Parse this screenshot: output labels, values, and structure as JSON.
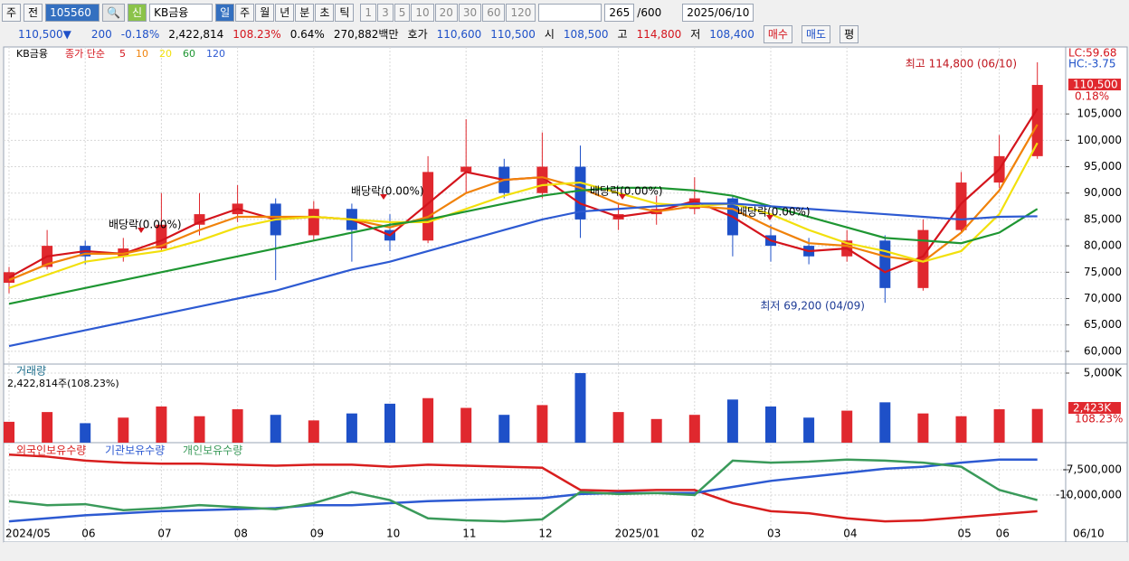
{
  "toolbar": {
    "market_button": "주",
    "prev_button": "전",
    "code": "105560",
    "name": "KB금융",
    "new_badge": "신",
    "periods": [
      "일",
      "주",
      "월",
      "년",
      "분",
      "초",
      "틱"
    ],
    "intervals": [
      "1",
      "3",
      "5",
      "10",
      "20",
      "30",
      "60",
      "120"
    ],
    "count": "265",
    "count_max": "/600",
    "date": "2025/06/10"
  },
  "info_bar": {
    "price": "110,500▼",
    "change": "200",
    "change_rate": "-0.18%",
    "volume": "2,422,814",
    "volume_ratio": "108.23%",
    "turnover_rate": "0.64%",
    "amount": "270,882백만",
    "quote_label": "호가",
    "ask": "110,600",
    "bid": "110,500",
    "open_label": "시",
    "open": "108,500",
    "high_label": "고",
    "high": "114,800",
    "low_label": "저",
    "low": "108,400",
    "buy": "매수",
    "sell": "매도",
    "avg": "평"
  },
  "chart_data": [
    {
      "type": "candlestick",
      "legend_title": "KB금융",
      "legend_label": "종가 단순",
      "categories": [
        "2024/05",
        null,
        "06",
        null,
        "07",
        null,
        "08",
        null,
        "09",
        null,
        "10",
        null,
        "11",
        null,
        "12",
        null,
        "2025/01",
        null,
        "02",
        null,
        "03",
        null,
        "04",
        null,
        null,
        "05",
        "06",
        null
      ],
      "open": [
        73000,
        76000,
        80000,
        78000,
        79500,
        84000,
        86000,
        88000,
        82000,
        87000,
        83000,
        81000,
        94000,
        95000,
        90000,
        95000,
        85000,
        86000,
        87000,
        89000,
        82000,
        80000,
        78000,
        81000,
        72000,
        83000,
        92000,
        97000
      ],
      "high": [
        76000,
        83000,
        81000,
        81500,
        90000,
        90000,
        91500,
        89000,
        88500,
        88000,
        86000,
        97000,
        104000,
        96500,
        101500,
        99000,
        88000,
        89500,
        93000,
        89500,
        84000,
        81500,
        83000,
        82000,
        85000,
        94000,
        101000,
        114800
      ],
      "low": [
        71000,
        75500,
        76500,
        77000,
        79000,
        82000,
        84500,
        73500,
        81000,
        77000,
        79000,
        80500,
        90000,
        89000,
        89000,
        81500,
        83000,
        84000,
        86000,
        78000,
        77000,
        76500,
        77000,
        69200,
        71500,
        82500,
        91000,
        96500
      ],
      "close": [
        75000,
        80000,
        78000,
        79500,
        84000,
        86000,
        88000,
        82000,
        87000,
        83000,
        81000,
        94000,
        95000,
        90000,
        95000,
        85000,
        86000,
        87000,
        89000,
        82000,
        80000,
        78000,
        81000,
        72000,
        83000,
        92000,
        97000,
        110500
      ],
      "up_color": "#e0282e",
      "down_color": "#1e50c8",
      "series": [
        {
          "name": "5",
          "color": "#d4141c",
          "values": [
            74000,
            78000,
            79000,
            78500,
            81000,
            84500,
            87000,
            85000,
            85500,
            85000,
            82000,
            88000,
            94000,
            92500,
            93000,
            88000,
            85500,
            86500,
            88500,
            85500,
            81000,
            79000,
            79500,
            75000,
            78000,
            88000,
            94500,
            106000
          ]
        },
        {
          "name": "10",
          "color": "#f0820a",
          "values": [
            73500,
            76500,
            78500,
            78500,
            80000,
            83000,
            85500,
            85500,
            85500,
            85000,
            83500,
            85500,
            90000,
            92500,
            93000,
            91000,
            88000,
            86500,
            87500,
            87000,
            83500,
            80500,
            80000,
            78000,
            77000,
            82500,
            90500,
            103000
          ]
        },
        {
          "name": "20",
          "color": "#f2e00c",
          "values": [
            72000,
            74500,
            77000,
            78000,
            79000,
            81000,
            83500,
            85000,
            85500,
            85000,
            84500,
            84500,
            87000,
            89500,
            91500,
            92000,
            90000,
            88000,
            87500,
            88000,
            86000,
            83000,
            80500,
            79000,
            77000,
            79000,
            86000,
            99500
          ]
        },
        {
          "name": "60",
          "color": "#1e9632",
          "values": [
            69000,
            70500,
            72000,
            73500,
            75000,
            76500,
            78000,
            79500,
            81000,
            82500,
            84000,
            85000,
            86500,
            88000,
            89500,
            90500,
            91000,
            91000,
            90500,
            89500,
            87500,
            85500,
            83500,
            81500,
            81000,
            80500,
            82500,
            87000
          ]
        },
        {
          "name": "120",
          "color": "#2d5ad2",
          "values": [
            61000,
            62500,
            64000,
            65500,
            67000,
            68500,
            70000,
            71500,
            73500,
            75500,
            77000,
            79000,
            81000,
            83000,
            85000,
            86500,
            87000,
            87500,
            88000,
            88000,
            87500,
            87000,
            86500,
            86000,
            85500,
            85000,
            85500,
            85600
          ]
        }
      ],
      "ylim": [
        58100,
        115300
      ],
      "yticks": [
        {
          "value": 60000,
          "label": "60,000"
        },
        {
          "value": 65000,
          "label": "65,000"
        },
        {
          "value": 70000,
          "label": "70,000"
        },
        {
          "value": 75000,
          "label": "75,000"
        },
        {
          "value": 80000,
          "label": "80,000"
        },
        {
          "value": 85000,
          "label": "85,000"
        },
        {
          "value": 90000,
          "label": "90,000"
        },
        {
          "value": 95000,
          "label": "95,000"
        },
        {
          "value": 100000,
          "label": "100,000"
        },
        {
          "value": 105000,
          "label": "105,000"
        }
      ],
      "grid": true,
      "annotations": [
        "배당락(0.00%)",
        "배당락(0.00%)",
        "배당락(0.00%)",
        "배당락(0.00%)"
      ],
      "high_label": "최고 114,800 (06/10)",
      "low_label": "최저 69,200 (04/09)",
      "lc_label": "LC:59.68",
      "hc_label": "HC:-3.75",
      "last_price_label": "110,500",
      "last_change_label": "0.18%"
    },
    {
      "type": "bar",
      "title": "거래량",
      "subtitle": "2,422,814주(108.23%)",
      "values": [
        1500000,
        2200000,
        1400000,
        1800000,
        2600000,
        1900000,
        2400000,
        2000000,
        1600000,
        2100000,
        2800000,
        3200000,
        2500000,
        2000000,
        2700000,
        5000000,
        2200000,
        1700000,
        2000000,
        3100000,
        2600000,
        1800000,
        2300000,
        2900000,
        2100000,
        1900000,
        2400000,
        2422814
      ],
      "ylim": [
        0,
        5520000
      ],
      "yticks": [
        {
          "value": 5000000,
          "label": "5,000K"
        }
      ],
      "last_value_label": "2,423K",
      "last_ratio_label": "108.23%"
    },
    {
      "type": "line",
      "series": [
        {
          "name": "외국인보유수량",
          "color": "#d81e1e",
          "values": [
            -6000000,
            -6200000,
            -6600000,
            -6800000,
            -6900000,
            -6900000,
            -7000000,
            -7100000,
            -7000000,
            -7000000,
            -7200000,
            -7000000,
            -7100000,
            -7200000,
            -7300000,
            -9500000,
            -9600000,
            -9500000,
            -9500000,
            -10800000,
            -11600000,
            -11800000,
            -12300000,
            -12600000,
            -12500000,
            -12200000,
            -11900000,
            -11600000
          ]
        },
        {
          "name": "기관보유수량",
          "color": "#2d5ad2",
          "values": [
            -12600000,
            -12300000,
            -12000000,
            -11800000,
            -11600000,
            -11500000,
            -11400000,
            -11300000,
            -11000000,
            -11000000,
            -10800000,
            -10600000,
            -10500000,
            -10400000,
            -10300000,
            -9900000,
            -9800000,
            -9800000,
            -9800000,
            -9200000,
            -8600000,
            -8200000,
            -7800000,
            -7400000,
            -7200000,
            -6800000,
            -6500000,
            -6500000
          ]
        },
        {
          "name": "개인보유수량",
          "color": "#3a9a5a",
          "values": [
            -10600000,
            -11000000,
            -10900000,
            -11500000,
            -11300000,
            -11000000,
            -11200000,
            -11400000,
            -10800000,
            -9700000,
            -10500000,
            -12300000,
            -12500000,
            -12600000,
            -12400000,
            -9700000,
            -9900000,
            -9800000,
            -10000000,
            -6600000,
            -6800000,
            -6700000,
            -6500000,
            -6600000,
            -6800000,
            -7200000,
            -9500000,
            -10500000
          ]
        }
      ],
      "ylim": [
        -12680000,
        -5000000
      ],
      "yticks": [
        {
          "value": -7500000,
          "label": "-7,500,000"
        },
        {
          "value": -10000000,
          "label": "-10,000,000"
        }
      ],
      "x_end_label": "06/10"
    }
  ]
}
